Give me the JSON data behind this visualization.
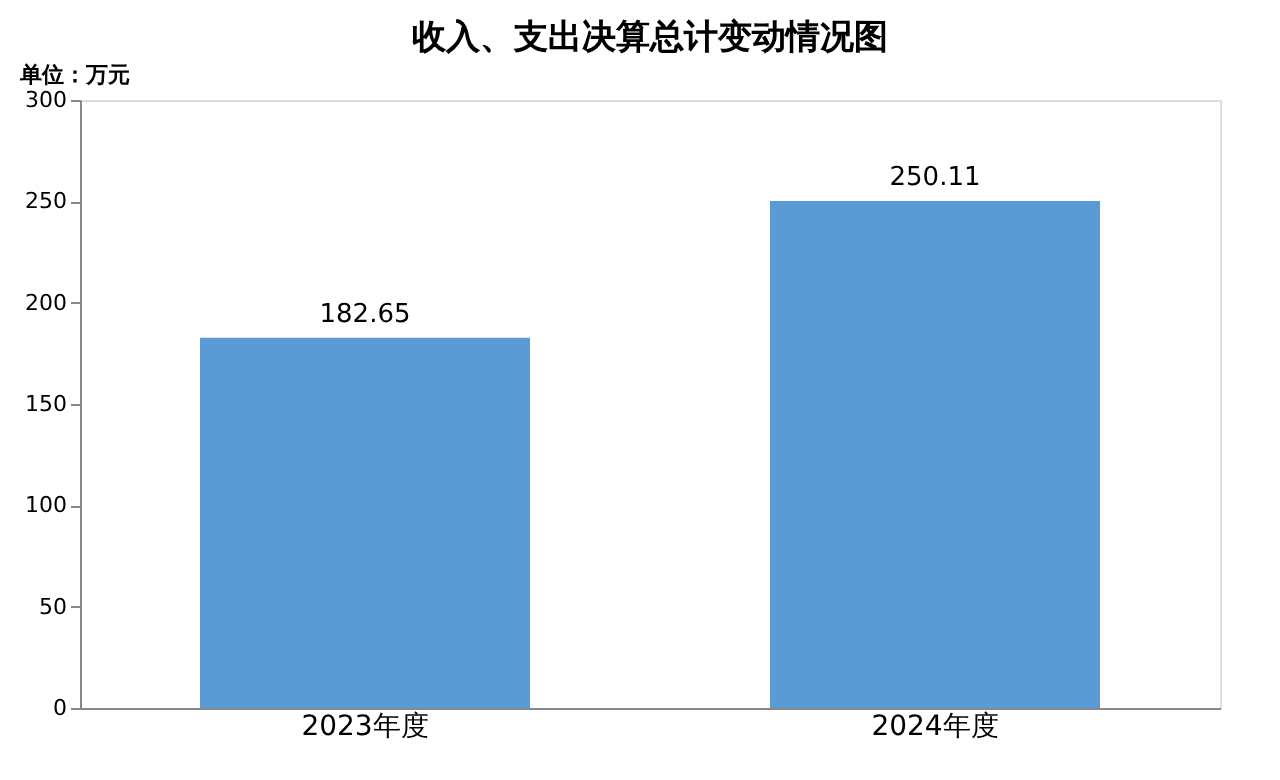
{
  "chart_data": {
    "type": "bar",
    "title": "收入、支出决算总计变动情况图",
    "annotations": [
      "单位：万元"
    ],
    "categories": [
      "2023年度",
      "2024年度"
    ],
    "values": [
      182.65,
      250.11
    ],
    "color": "#5b9bd5",
    "ylim": [
      0,
      300
    ],
    "yticks": [
      0,
      50,
      100,
      150,
      200,
      250,
      300
    ],
    "data_labels": true,
    "grid": false
  }
}
